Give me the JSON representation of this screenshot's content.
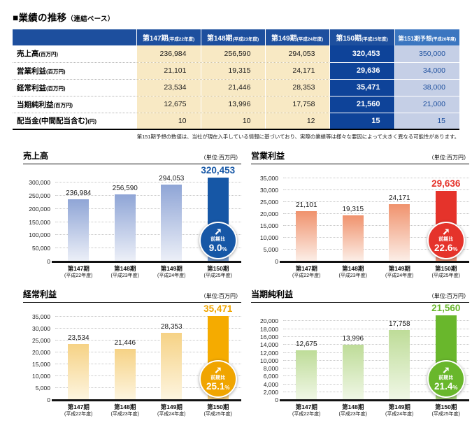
{
  "page": {
    "title": "■業績の推移",
    "title_note": "（連結ベース）",
    "footnote": "第151期予想の数値は、当社が現在入手している情報に基づいており、実際の業績等は様々な要因によって大きく異なる可能性があります。"
  },
  "colors": {
    "header_blue": "#1d4f9e",
    "forecast_header_blue": "#3b76c0",
    "current_col_blue": "#0e4399",
    "cell_beige": "#f8e9c4",
    "forecast_cell": "#c5cfe6",
    "forecast_text": "#1d4f9e"
  },
  "table": {
    "columns": [
      {
        "name": "第147期",
        "sub": "(平成22年度)",
        "type": "past"
      },
      {
        "name": "第148期",
        "sub": "(平成23年度)",
        "type": "past"
      },
      {
        "name": "第149期",
        "sub": "(平成24年度)",
        "type": "past"
      },
      {
        "name": "第150期",
        "sub": "(平成25年度)",
        "type": "current"
      },
      {
        "name": "第151期予想",
        "sub": "(平成26年度)",
        "type": "forecast"
      }
    ],
    "rows": [
      {
        "label": "売上高",
        "unit": "(百万円)",
        "values": [
          "236,984",
          "256,590",
          "294,053",
          "320,453",
          "350,000"
        ]
      },
      {
        "label": "営業利益",
        "unit": "(百万円)",
        "values": [
          "21,101",
          "19,315",
          "24,171",
          "29,636",
          "34,000"
        ]
      },
      {
        "label": "経常利益",
        "unit": "(百万円)",
        "values": [
          "23,534",
          "21,446",
          "28,353",
          "35,471",
          "38,000"
        ]
      },
      {
        "label": "当期純利益",
        "unit": "(百万円)",
        "values": [
          "12,675",
          "13,996",
          "17,758",
          "21,560",
          "21,000"
        ]
      },
      {
        "label": "配当金(中間配当含む)",
        "unit": "(円)",
        "values": [
          "10",
          "10",
          "12",
          "15",
          "15"
        ]
      }
    ]
  },
  "chart_data": [
    {
      "type": "bar",
      "id": "net-sales",
      "title": "売上高",
      "unit": "（単位:百万円）",
      "categories": [
        {
          "line1": "第147期",
          "line2": "(平成22年度)"
        },
        {
          "line1": "第148期",
          "line2": "(平成23年度)"
        },
        {
          "line1": "第149期",
          "line2": "(平成24年度)"
        },
        {
          "line1": "第150期",
          "line2": "(平成25年度)"
        }
      ],
      "values": [
        236984,
        256590,
        294053,
        320453
      ],
      "value_labels": [
        "236,984",
        "256,590",
        "294,053",
        "320,453"
      ],
      "highlight_index": 3,
      "ticks": [
        0,
        50000,
        100000,
        150000,
        200000,
        250000,
        300000
      ],
      "tick_labels": [
        "0",
        "50,000",
        "100,000",
        "150,000",
        "200,000",
        "250,000",
        "300,000"
      ],
      "axis_max": 330000,
      "badge": {
        "label": "前期比",
        "value": "9.0",
        "unit": "%"
      },
      "colors": {
        "bar_top": "#8fa5d6",
        "bar_bottom": "#edf0f8",
        "hl_top": "#1657a6",
        "hl_bottom": "#7ea2d4",
        "accent": "#1657a6"
      }
    },
    {
      "type": "bar",
      "id": "operating-income",
      "title": "営業利益",
      "unit": "（単位:百万円）",
      "categories": [
        {
          "line1": "第147期",
          "line2": "(平成22年度)"
        },
        {
          "line1": "第148期",
          "line2": "(平成23年度)"
        },
        {
          "line1": "第149期",
          "line2": "(平成24年度)"
        },
        {
          "line1": "第150期",
          "line2": "(平成25年度)"
        }
      ],
      "values": [
        21101,
        19315,
        24171,
        29636
      ],
      "value_labels": [
        "21,101",
        "19,315",
        "24,171",
        "29,636"
      ],
      "highlight_index": 3,
      "ticks": [
        0,
        5000,
        10000,
        15000,
        20000,
        25000,
        30000,
        35000
      ],
      "tick_labels": [
        "0",
        "5,000",
        "10,000",
        "15,000",
        "20,000",
        "25,000",
        "30,000",
        "35,000"
      ],
      "axis_max": 36500,
      "badge": {
        "label": "前期比",
        "value": "22.6",
        "unit": "%"
      },
      "colors": {
        "bar_top": "#f0926d",
        "bar_bottom": "#fcefe8",
        "hl_top": "#e5332b",
        "hl_bottom": "#f09b80",
        "accent": "#e5332b"
      }
    },
    {
      "type": "bar",
      "id": "ordinary-income",
      "title": "経常利益",
      "unit": "（単位:百万円）",
      "categories": [
        {
          "line1": "第147期",
          "line2": "(平成22年度)"
        },
        {
          "line1": "第148期",
          "line2": "(平成23年度)"
        },
        {
          "line1": "第149期",
          "line2": "(平成24年度)"
        },
        {
          "line1": "第150期",
          "line2": "(平成25年度)"
        }
      ],
      "values": [
        23534,
        21446,
        28353,
        35471
      ],
      "value_labels": [
        "23,534",
        "21,446",
        "28,353",
        "35,471"
      ],
      "highlight_index": 3,
      "ticks": [
        0,
        5000,
        10000,
        15000,
        20000,
        25000,
        30000,
        35000
      ],
      "tick_labels": [
        "0",
        "5,000",
        "10,000",
        "15,000",
        "20,000",
        "25,000",
        "30,000",
        "35,000"
      ],
      "axis_max": 36500,
      "badge": {
        "label": "前期比",
        "value": "25.1",
        "unit": "%"
      },
      "colors": {
        "bar_top": "#f6d285",
        "bar_bottom": "#fdf5e0",
        "hl_top": "#f5ab00",
        "hl_bottom": "#f7d387",
        "accent": "#f0a500"
      }
    },
    {
      "type": "bar",
      "id": "net-income",
      "title": "当期純利益",
      "unit": "（単位:百万円）",
      "categories": [
        {
          "line1": "第147期",
          "line2": "(平成22年度)"
        },
        {
          "line1": "第148期",
          "line2": "(平成23年度)"
        },
        {
          "line1": "第149期",
          "line2": "(平成24年度)"
        },
        {
          "line1": "第150期",
          "line2": "(平成25年度)"
        }
      ],
      "values": [
        12675,
        13996,
        17758,
        21560
      ],
      "value_labels": [
        "12,675",
        "13,996",
        "17,758",
        "21,560"
      ],
      "highlight_index": 3,
      "ticks": [
        0,
        2000,
        4000,
        6000,
        8000,
        10000,
        12000,
        14000,
        16000,
        18000,
        20000
      ],
      "tick_labels": [
        "0",
        "2,000",
        "4,000",
        "6,000",
        "8,000",
        "10,000",
        "12,000",
        "14,000",
        "16,000",
        "18,000",
        "20,000"
      ],
      "axis_max": 22000,
      "badge": {
        "label": "前期比",
        "value": "21.4",
        "unit": "%"
      },
      "colors": {
        "bar_top": "#bedc98",
        "bar_bottom": "#f0f7e6",
        "hl_top": "#69b72c",
        "hl_bottom": "#abd57f",
        "accent": "#69b72c"
      }
    }
  ]
}
